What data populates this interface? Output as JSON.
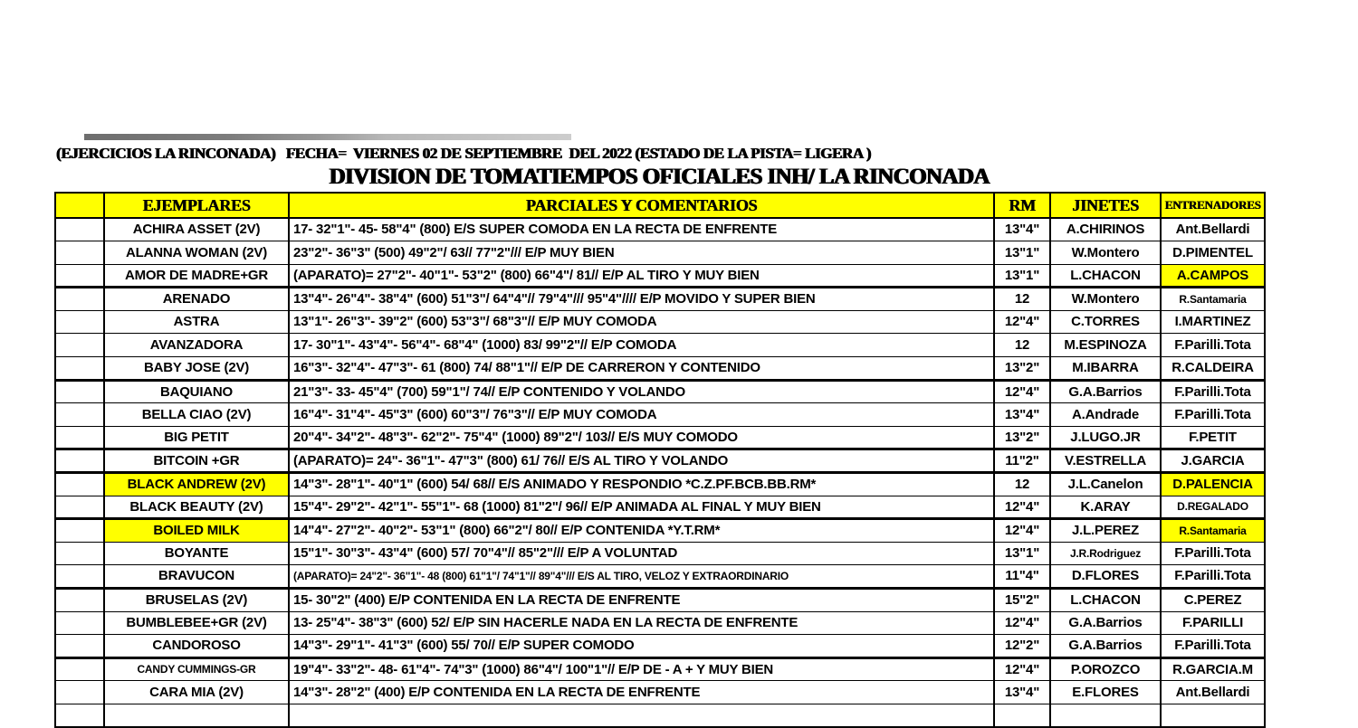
{
  "page": {
    "header_line": "(EJERCICIOS LA RINCONADA)   FECHA=  VIERNES 02 DE SEPTIEMBRE  DEL 2022 (ESTADO DE LA PISTA= LIGERA )",
    "title": "DIVISION DE TOMATIEMPOS OFICIALES INH/ LA RINCONADA"
  },
  "colors": {
    "header_bg": "#FFFF00",
    "highlight_bg": "#FFFF00",
    "border": "#000000",
    "text": "#000000"
  },
  "table": {
    "columns": [
      "",
      "EJEMPLARES",
      "PARCIALES Y COMENTARIOS",
      "RM",
      "JINETES",
      "ENTRENADORES"
    ],
    "rows": [
      {
        "ejemplar": "ACHIRA ASSET (2V)",
        "parciales": "17- 32\"1\"- 45- 58\"4\" (800) E/S SUPER COMODA EN LA RECTA DE ENFRENTE",
        "rm": "13\"4\"",
        "jinete": "A.CHIRINOS",
        "entrenador": "Ant.Bellardi"
      },
      {
        "ejemplar": "ALANNA WOMAN (2V)",
        "parciales": "23\"2\"- 36\"3\" (500) 49\"2\"/ 63// 77\"2\"/// E/P MUY BIEN",
        "rm": "13\"1\"",
        "jinete": "W.Montero",
        "entrenador": "D.PIMENTEL"
      },
      {
        "ejemplar": "AMOR DE MADRE+GR",
        "parciales": "(APARATO)= 27\"2\"- 40\"1\"- 53\"2\" (800) 66\"4\"/ 81// E/P AL TIRO Y MUY BIEN",
        "rm": "13\"1\"",
        "jinete": "L.CHACON",
        "entrenador": "A.CAMPOS",
        "entrenador_highlight": true
      },
      {
        "ejemplar": "ARENADO",
        "parciales": "13\"4\"- 26\"4\"- 38\"4\" (600) 51\"3\"/ 64\"4\"// 79\"4\"/// 95\"4\"//// E/P MOVIDO Y SUPER BIEN",
        "rm": "12",
        "jinete": "W.Montero",
        "entrenador": "R.Santamaria",
        "entrenador_small": true,
        "thick_top": true
      },
      {
        "ejemplar": "ASTRA",
        "parciales": "13\"1\"- 26\"3\"- 39\"2\" (600) 53\"3\"/ 68\"3\"// E/P MUY COMODA",
        "rm": "12\"4\"",
        "jinete": "C.TORRES",
        "entrenador": "I.MARTINEZ"
      },
      {
        "ejemplar": "AVANZADORA",
        "parciales": "17- 30\"1\"- 43\"4\"- 56\"4\"- 68\"4\" (1000) 83/ 99\"2\"// E/P COMODA",
        "rm": "12",
        "jinete": "M.ESPINOZA",
        "entrenador": "F.Parilli.Tota"
      },
      {
        "ejemplar": "BABY JOSE (2V)",
        "parciales": "16\"3\"- 32\"4\"- 47\"3\"- 61 (800) 74/ 88\"1\"// E/P DE CARRERON Y CONTENIDO",
        "rm": "13\"2\"",
        "jinete": "M.IBARRA",
        "entrenador": "R.CALDEIRA"
      },
      {
        "ejemplar": "BAQUIANO",
        "parciales": "21\"3\"- 33- 45\"4\" (700) 59\"1\"/ 74// E/P CONTENIDO Y VOLANDO",
        "rm": "12\"4\"",
        "jinete": "G.A.Barrios",
        "entrenador": "F.Parilli.Tota",
        "thick_top": true
      },
      {
        "ejemplar": "BELLA CIAO (2V)",
        "parciales": "16\"4\"- 31\"4\"- 45\"3\" (600) 60\"3\"/ 76\"3\"// E/P MUY COMODA",
        "rm": "13\"4\"",
        "jinete": "A.Andrade",
        "entrenador": "F.Parilli.Tota"
      },
      {
        "ejemplar": "BIG PETIT",
        "parciales": "20\"4\"- 34\"2\"- 48\"3\"- 62\"2\"- 75\"4\" (1000) 89\"2\"/ 103// E/S MUY COMODO",
        "rm": "13\"2\"",
        "jinete": "J.LUGO.JR",
        "entrenador": "F.PETIT"
      },
      {
        "ejemplar": "BITCOIN +GR",
        "parciales": "(APARATO)= 24\"- 36\"1\"- 47\"3\" (800) 61/ 76// E/S AL TIRO Y VOLANDO",
        "rm": "11\"2\"",
        "jinete": "V.ESTRELLA",
        "entrenador": "J.GARCIA",
        "thick_top": true
      },
      {
        "ejemplar": "BLACK ANDREW (2V)",
        "parciales": "14\"3\"- 28\"1\"- 40\"1\" (600) 54/ 68// E/S ANIMADO Y RESPONDIO *C.Z.PF.BCB.BB.RM*",
        "rm": "12",
        "jinete": "J.L.Canelon",
        "entrenador": "D.PALENCIA",
        "ejemplar_highlight": true,
        "entrenador_highlight": true,
        "thick_top": true
      },
      {
        "ejemplar": "BLACK BEAUTY (2V)",
        "parciales": "15\"4\"- 29\"2\"- 42\"1\"- 55\"1\"- 68 (1000) 81\"2\"/ 96// E/P ANIMADA AL FINAL Y MUY BIEN",
        "rm": "12\"4\"",
        "jinete": "K.ARAY",
        "entrenador": "D.REGALADO",
        "entrenador_small": true
      },
      {
        "ejemplar": "BOILED MILK",
        "parciales": "14\"4\"- 27\"2\"- 40\"2\"- 53\"1\" (800) 66\"2\"/ 80// E/P CONTENIDA *Y.T.RM*",
        "rm": "12\"4\"",
        "jinete": "J.L.PEREZ",
        "entrenador": "R.Santamaria",
        "ejemplar_highlight": true,
        "entrenador_highlight": true,
        "entrenador_small": true,
        "thick_top": true
      },
      {
        "ejemplar": "BOYANTE",
        "parciales": "15\"1\"- 30\"3\"- 43\"4\" (600) 57/ 70\"4\"// 85\"2\"/// E/P A VOLUNTAD",
        "rm": "13\"1\"",
        "jinete": "J.R.Rodriguez",
        "entrenador": "F.Parilli.Tota",
        "jinete_small": true
      },
      {
        "ejemplar": "BRAVUCON",
        "parciales": "(APARATO)= 24\"2\"- 36\"1\"- 48 (800) 61\"1\"/ 74\"1\"// 89\"4\"/// E/S AL TIRO, VELOZ Y EXTRAORDINARIO",
        "rm": "11\"4\"",
        "jinete": "D.FLORES",
        "entrenador": "F.Parilli.Tota",
        "parciales_small": true
      },
      {
        "ejemplar": "BRUSELAS (2V)",
        "parciales": "15- 30\"2\" (400) E/P CONTENIDA EN LA RECTA DE ENFRENTE",
        "rm": "15\"2\"",
        "jinete": "L.CHACON",
        "entrenador": "C.PEREZ",
        "thick_top": true
      },
      {
        "ejemplar": "BUMBLEBEE+GR (2V)",
        "parciales": "13- 25\"4\"- 38\"3\" (600) 52/ E/P SIN HACERLE NADA EN LA RECTA DE ENFRENTE",
        "rm": "12\"4\"",
        "jinete": "G.A.Barrios",
        "entrenador": "F.PARILLI"
      },
      {
        "ejemplar": "CANDOROSO",
        "parciales": "14\"3\"- 29\"1\"- 41\"3\" (600) 55/ 70// E/P SUPER COMODO",
        "rm": "12\"2\"",
        "jinete": "G.A.Barrios",
        "entrenador": "F.Parilli.Tota"
      },
      {
        "ejemplar": "CANDY CUMMINGS-GR",
        "parciales": "19\"4\"- 33\"2\"- 48- 61\"4\"- 74\"3\" (1000) 86\"4\"/ 100\"1\"// E/P DE - A + Y MUY BIEN",
        "rm": "12\"4\"",
        "jinete": "P.OROZCO",
        "entrenador": "R.GARCIA.M",
        "ejemplar_small": true,
        "thick_top": true
      },
      {
        "ejemplar": "CARA MIA (2V)",
        "parciales": "14\"3\"- 28\"2\" (400) E/P CONTENIDA EN LA RECTA DE ENFRENTE",
        "rm": "13\"4\"",
        "jinete": "E.FLORES",
        "entrenador": "Ant.Bellardi"
      }
    ]
  }
}
